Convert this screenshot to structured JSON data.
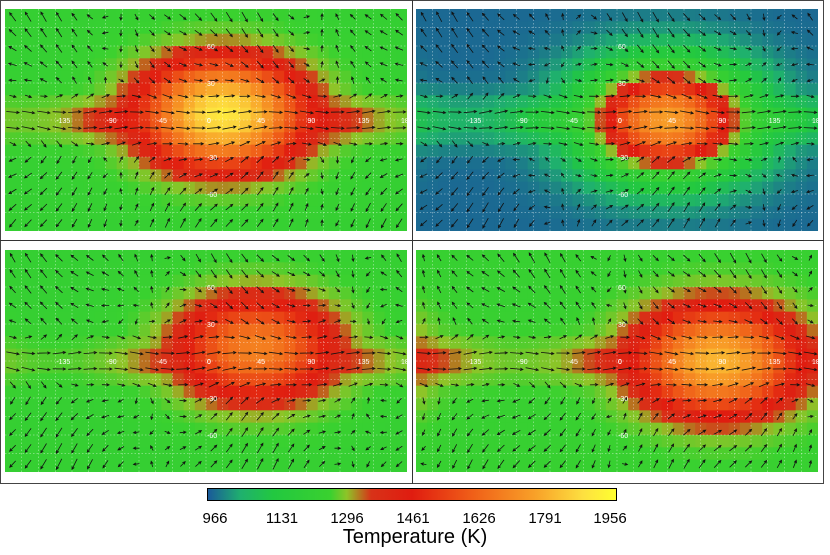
{
  "colorbar": {
    "title": "Temperature (K)",
    "ticks": [
      "966",
      "1131",
      "1296",
      "1461",
      "1626",
      "1791",
      "1956"
    ],
    "range": [
      966,
      1956
    ]
  },
  "chart_data": [
    {
      "type": "heatmap",
      "panel": "top-left",
      "title": "",
      "xlabel": "",
      "ylabel": "",
      "xlim": [
        -180,
        180
      ],
      "ylim": [
        -90,
        90
      ],
      "lon_ticks": [
        "-135",
        "-90",
        "-45",
        "0",
        "45",
        "90",
        "135",
        "180"
      ],
      "lat_ticks": [
        "60",
        "30",
        "0",
        "-30",
        "-60"
      ],
      "hot_center": [
        15,
        5
      ],
      "hot_max_K": 1900,
      "min_K": 1250,
      "vectors": "wind"
    },
    {
      "type": "heatmap",
      "panel": "top-right",
      "title": "",
      "xlabel": "",
      "ylabel": "",
      "xlim": [
        -180,
        180
      ],
      "ylim": [
        -90,
        90
      ],
      "lon_ticks": [
        "-135",
        "-90",
        "-45",
        "0",
        "45",
        "90",
        "135",
        "180"
      ],
      "lat_ticks": [
        "60",
        "30",
        "0",
        "-30",
        "-60"
      ],
      "hot_center": [
        45,
        0
      ],
      "hot_max_K": 1750,
      "min_K": 980,
      "vectors": "wind"
    },
    {
      "type": "heatmap",
      "panel": "bottom-left",
      "title": "",
      "xlabel": "",
      "ylabel": "",
      "xlim": [
        -180,
        180
      ],
      "ylim": [
        -90,
        90
      ],
      "lon_ticks": [
        "-135",
        "-90",
        "-45",
        "0",
        "45",
        "90",
        "135",
        "180"
      ],
      "lat_ticks": [
        "60",
        "30",
        "0",
        "-30",
        "-60"
      ],
      "hot_center": [
        45,
        10
      ],
      "hot_max_K": 1680,
      "min_K": 1250,
      "vectors": "wind"
    },
    {
      "type": "heatmap",
      "panel": "bottom-right",
      "title": "",
      "xlabel": "",
      "ylabel": "",
      "xlim": [
        -180,
        180
      ],
      "ylim": [
        -90,
        90
      ],
      "lon_ticks": [
        "-135",
        "-90",
        "-45",
        "0",
        "45",
        "90",
        "135",
        "180"
      ],
      "lat_ticks": [
        "60",
        "30",
        "0",
        "-30",
        "-60"
      ],
      "hot_center": [
        90,
        0
      ],
      "hot_max_K": 1800,
      "min_K": 1260,
      "vectors": "wind"
    }
  ]
}
